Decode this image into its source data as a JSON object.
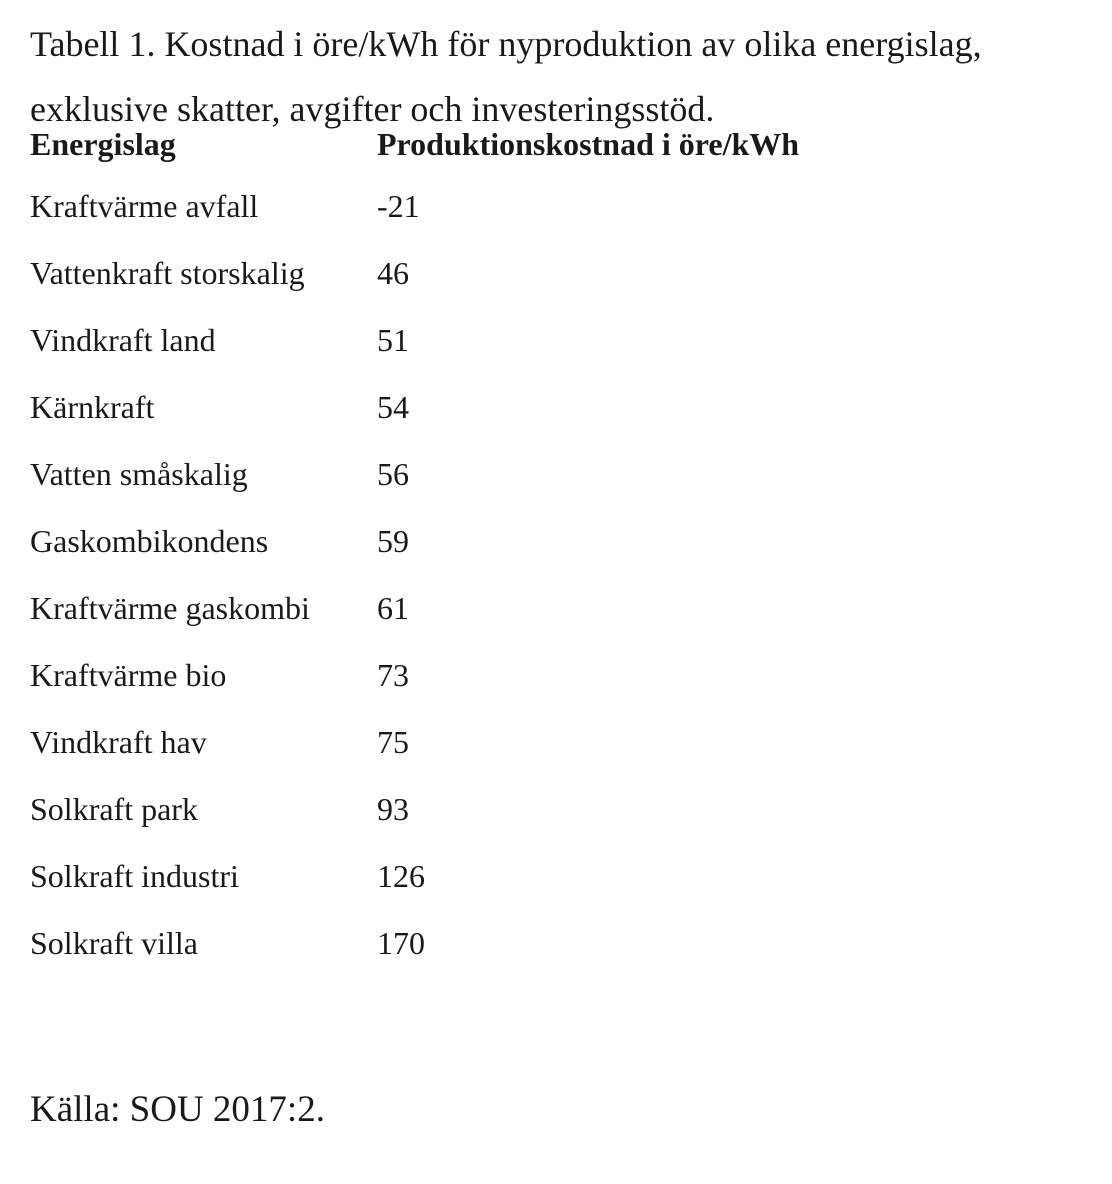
{
  "caption": {
    "line1": "Tabell 1. Kostnad i öre/kWh för nyproduktion av olika energislag,",
    "line2": "exklusive skatter, avgifter och investeringsstöd."
  },
  "table": {
    "headers": [
      "Energislag",
      "Produktionskostnad i öre/kWh"
    ],
    "rows": [
      [
        "Kraftvärme avfall",
        "-21"
      ],
      [
        "Vattenkraft storskalig",
        "46"
      ],
      [
        "Vindkraft land",
        "51"
      ],
      [
        "Kärnkraft",
        "54"
      ],
      [
        "Vatten småskalig",
        "56"
      ],
      [
        "Gaskombikondens",
        "59"
      ],
      [
        "Kraftvärme gaskombi",
        "61"
      ],
      [
        "Kraftvärme bio",
        "73"
      ],
      [
        "Vindkraft hav",
        "75"
      ],
      [
        "Solkraft park",
        "93"
      ],
      [
        "Solkraft industri",
        "126"
      ],
      [
        "Solkraft villa",
        "170"
      ]
    ]
  },
  "source": "Källa: SOU 2017:2."
}
